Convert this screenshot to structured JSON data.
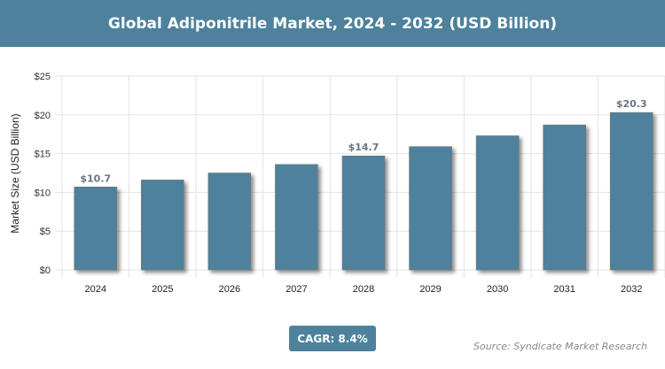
{
  "title": "Global Adiponitrile Market, 2024 - 2032 (USD Billion)",
  "chart_data": {
    "type": "bar",
    "categories": [
      "2024",
      "2025",
      "2026",
      "2027",
      "2028",
      "2029",
      "2030",
      "2031",
      "2032"
    ],
    "values": [
      10.7,
      11.6,
      12.5,
      13.6,
      14.7,
      15.9,
      17.3,
      18.7,
      20.3
    ],
    "data_labels": {
      "0": "$10.7",
      "4": "$14.7",
      "8": "$20.3"
    },
    "xlabel": "",
    "ylabel": "Market Size (USD Billion)",
    "ylim": [
      0,
      25
    ],
    "yticks": [
      "$0",
      "$5",
      "$10",
      "$15",
      "$20",
      "$25"
    ],
    "grid": true,
    "bar_color": "#4d819c"
  },
  "cagr_label": "CAGR: 8.4%",
  "source": "Source: Syndicate Market Research"
}
